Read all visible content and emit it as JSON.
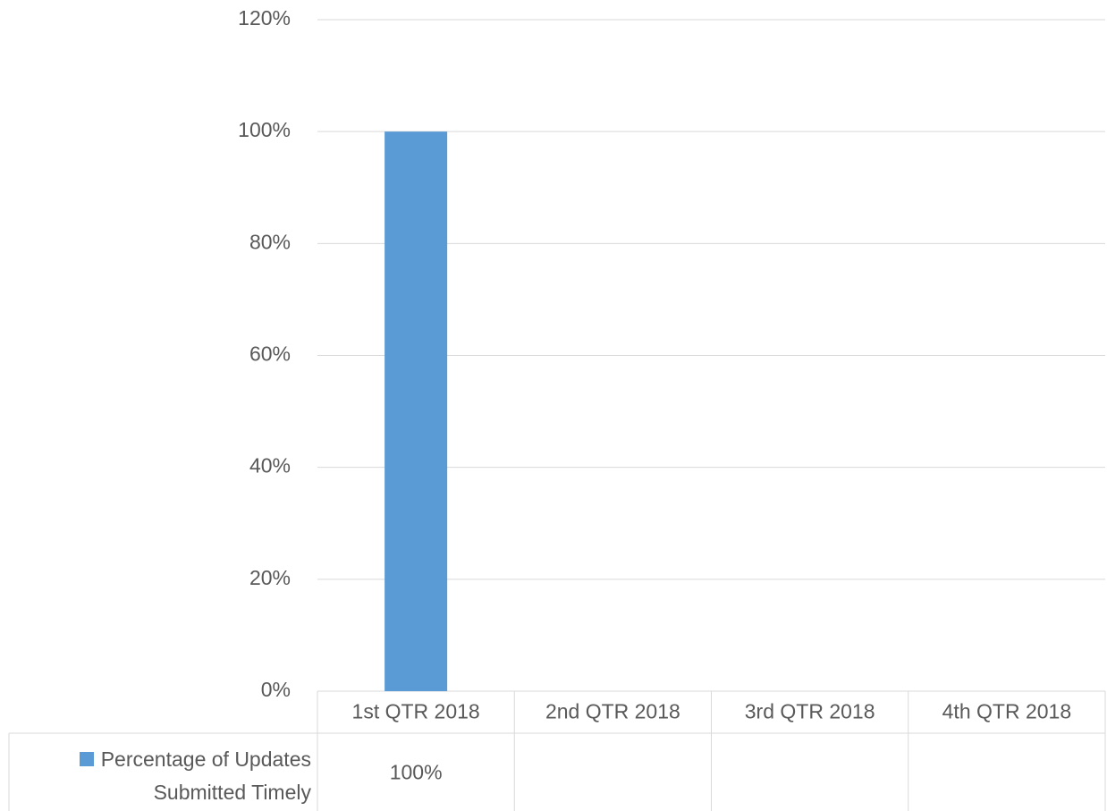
{
  "chart_data": {
    "type": "bar",
    "categories": [
      "1st QTR 2018",
      "2nd QTR 2018",
      "3rd QTR 2018",
      "4th QTR 2018"
    ],
    "series": [
      {
        "name": "Percentage of Updates Submitted Timely",
        "color": "#5b9bd5",
        "values": [
          100,
          null,
          null,
          null
        ],
        "value_labels": [
          "100%",
          null,
          null,
          null
        ]
      }
    ],
    "ylim": [
      0,
      120
    ],
    "yticks": [
      {
        "value": 0,
        "label": "0%"
      },
      {
        "value": 20,
        "label": "20%"
      },
      {
        "value": 40,
        "label": "40%"
      },
      {
        "value": 60,
        "label": "60%"
      },
      {
        "value": 80,
        "label": "80%"
      },
      {
        "value": 100,
        "label": "100%"
      },
      {
        "value": 120,
        "label": "120%"
      }
    ],
    "grid": true,
    "data_table": true
  }
}
